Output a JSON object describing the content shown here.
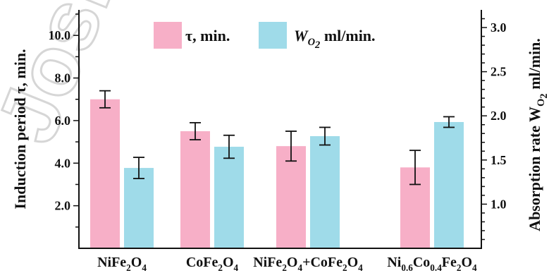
{
  "colors": {
    "tau": "#f7afc7",
    "w": "#9fdbe9",
    "axis": "#111111",
    "watermark": "#d6d6d6"
  },
  "watermark_text": "Joskel",
  "chart_data": {
    "type": "bar",
    "categories": [
      {
        "id": "nife",
        "parts": [
          [
            "NiFe",
            ""
          ],
          [
            "2",
            "sub"
          ],
          [
            "O",
            ""
          ],
          [
            "4",
            "sub"
          ]
        ]
      },
      {
        "id": "cofe",
        "parts": [
          [
            "CoFe",
            ""
          ],
          [
            "2",
            "sub"
          ],
          [
            "O",
            ""
          ],
          [
            "4",
            "sub"
          ]
        ]
      },
      {
        "id": "mix",
        "parts": [
          [
            "NiFe",
            ""
          ],
          [
            "2",
            "sub"
          ],
          [
            "O",
            ""
          ],
          [
            "4",
            "sub"
          ],
          [
            "+",
            ""
          ],
          [
            "CoFe",
            ""
          ],
          [
            "2",
            "sub"
          ],
          [
            "O",
            ""
          ],
          [
            "4",
            "sub"
          ]
        ]
      },
      {
        "id": "nico",
        "parts": [
          [
            "Ni",
            ""
          ],
          [
            "0.6",
            "sub"
          ],
          [
            "Co",
            ""
          ],
          [
            "0.4",
            "sub"
          ],
          [
            "Fe",
            ""
          ],
          [
            "2",
            "sub"
          ],
          [
            "O",
            ""
          ],
          [
            "4",
            "sub"
          ]
        ]
      }
    ],
    "series": [
      {
        "key": "tau",
        "axis": "left",
        "values": [
          7.0,
          5.5,
          4.8,
          3.8
        ],
        "errors": [
          0.4,
          0.4,
          0.7,
          0.8
        ]
      },
      {
        "key": "w",
        "axis": "right",
        "values": [
          1.41,
          1.65,
          1.77,
          1.93
        ],
        "errors": [
          0.12,
          0.13,
          0.1,
          0.06
        ]
      }
    ],
    "legend": [
      {
        "key": "tau",
        "parts": [
          [
            "τ, min.",
            ""
          ]
        ]
      },
      {
        "key": "w",
        "parts": [
          [
            "W",
            "it"
          ],
          [
            "O",
            "itsub"
          ],
          [
            "2",
            "itsubsub"
          ],
          [
            " ml/min.",
            ""
          ]
        ]
      }
    ],
    "left_axis": {
      "title_parts": [
        [
          "Induction period  τ, min.",
          ""
        ]
      ],
      "ylim": [
        0.0,
        11.2
      ],
      "ticks": [
        "2.0",
        "4.0",
        "6.0",
        "8.0",
        "10.0"
      ]
    },
    "right_axis": {
      "title_parts": [
        [
          "Absorption rate W",
          ""
        ],
        [
          "O",
          "sub"
        ],
        [
          "2",
          "subsub"
        ],
        [
          " ml/min.",
          ""
        ]
      ],
      "ylim": [
        0.5,
        3.2
      ],
      "ticks": [
        "1.0",
        "1.5",
        "2.0",
        "2.5",
        "3.0"
      ]
    },
    "grid": false,
    "legend_position": "top-center"
  }
}
